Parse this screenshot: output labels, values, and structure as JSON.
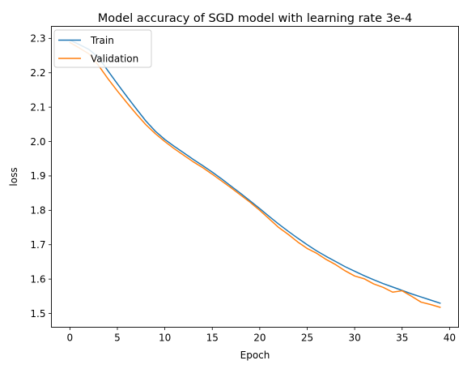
{
  "chart_data": {
    "type": "line",
    "title": "Model accuracy of SGD model with learning rate 3e-4",
    "xlabel": "Epoch",
    "ylabel": "loss",
    "xlim": [
      -1.95,
      40.95
    ],
    "ylim": [
      1.46,
      2.335
    ],
    "xticks": [
      0,
      5,
      10,
      15,
      20,
      25,
      30,
      35,
      40
    ],
    "xtick_labels": [
      "0",
      "5",
      "10",
      "15",
      "20",
      "25",
      "30",
      "35",
      "40"
    ],
    "yticks": [
      1.5,
      1.6,
      1.7,
      1.8,
      1.9,
      2.0,
      2.1,
      2.2,
      2.3
    ],
    "ytick_labels": [
      "1.5",
      "1.6",
      "1.7",
      "1.8",
      "1.9",
      "2.0",
      "2.1",
      "2.2",
      "2.3"
    ],
    "grid": false,
    "legend_position": "upper left",
    "x": [
      0,
      1,
      2,
      3,
      4,
      5,
      6,
      7,
      8,
      9,
      10,
      11,
      12,
      13,
      14,
      15,
      16,
      17,
      18,
      19,
      20,
      21,
      22,
      23,
      24,
      25,
      26,
      27,
      28,
      29,
      30,
      31,
      32,
      33,
      34,
      35,
      36,
      37,
      38,
      39
    ],
    "series": [
      {
        "name": "Train",
        "color": "#1f77b4",
        "values": [
          2.295,
          2.282,
          2.268,
          2.245,
          2.206,
          2.168,
          2.131,
          2.095,
          2.06,
          2.03,
          2.006,
          1.986,
          1.967,
          1.948,
          1.93,
          1.911,
          1.891,
          1.87,
          1.849,
          1.827,
          1.805,
          1.782,
          1.76,
          1.739,
          1.719,
          1.7,
          1.682,
          1.666,
          1.651,
          1.636,
          1.623,
          1.61,
          1.598,
          1.587,
          1.577,
          1.567,
          1.557,
          1.548,
          1.539,
          1.53
        ]
      },
      {
        "name": "Validation",
        "color": "#ff7f0e",
        "values": [
          2.288,
          2.272,
          2.255,
          2.222,
          2.183,
          2.147,
          2.113,
          2.08,
          2.049,
          2.023,
          2.0,
          1.979,
          1.96,
          1.941,
          1.924,
          1.905,
          1.885,
          1.865,
          1.844,
          1.823,
          1.8,
          1.775,
          1.75,
          1.73,
          1.708,
          1.689,
          1.675,
          1.657,
          1.642,
          1.624,
          1.609,
          1.601,
          1.586,
          1.576,
          1.562,
          1.566,
          1.55,
          1.533,
          1.526,
          1.518
        ]
      }
    ]
  }
}
